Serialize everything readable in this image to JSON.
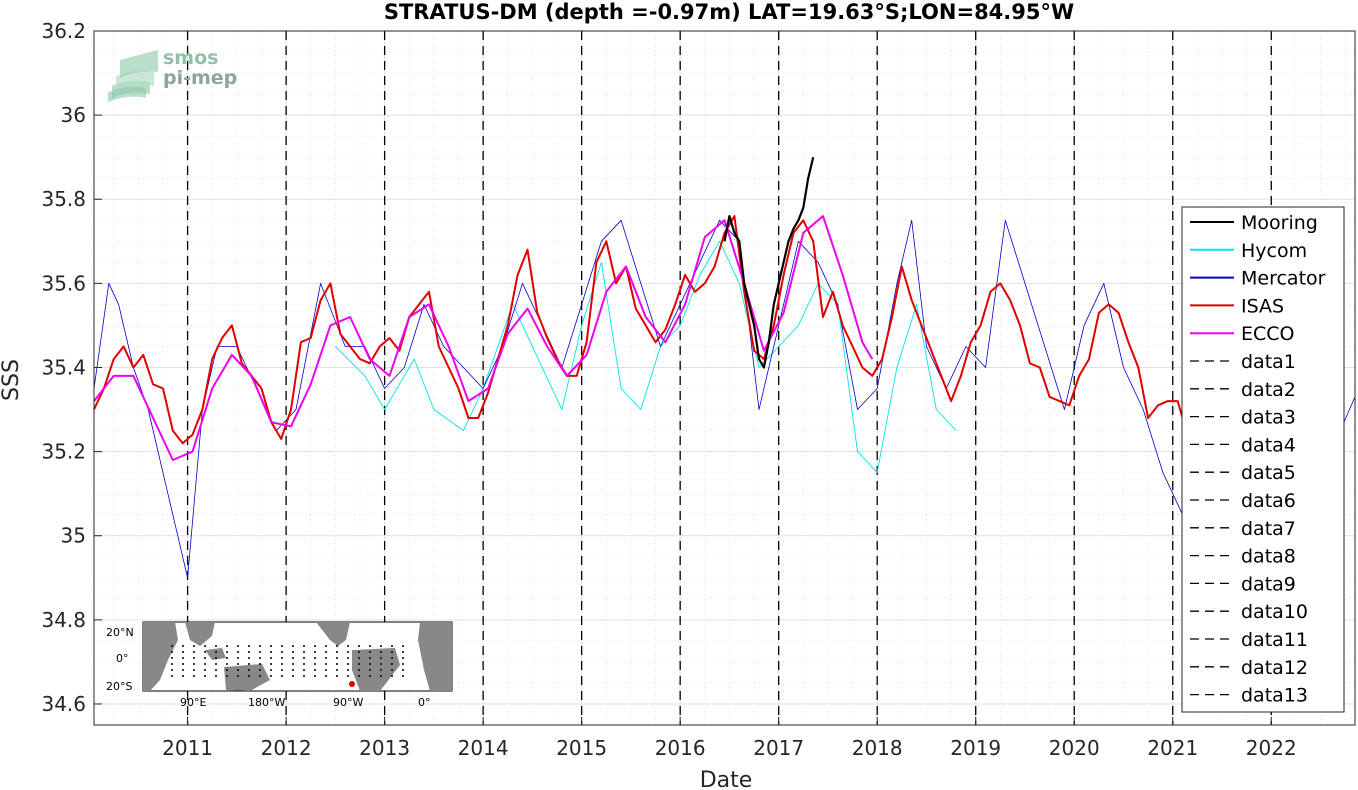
{
  "chart_data": {
    "type": "line",
    "title": "STRATUS-DM (depth =-0.97m) LAT=19.63°S;LON=84.95°W",
    "xlabel": "Date",
    "ylabel": "SSS",
    "xlim": [
      2010.05,
      2022.85
    ],
    "ylim": [
      34.55,
      36.2
    ],
    "yticks": [
      34.6,
      34.8,
      35,
      35.2,
      35.4,
      35.6,
      35.8,
      36,
      36.2
    ],
    "ytick_labels": [
      "34.6",
      "34.8",
      "35",
      "35.2",
      "35.4",
      "35.6",
      "35.8",
      "36",
      "36.2"
    ],
    "xticks": [
      2011,
      2012,
      2013,
      2014,
      2015,
      2016,
      2017,
      2018,
      2019,
      2020,
      2021,
      2022
    ],
    "xtick_labels": [
      "2011",
      "2012",
      "2013",
      "2014",
      "2015",
      "2016",
      "2017",
      "2018",
      "2019",
      "2020",
      "2021",
      "2022"
    ],
    "grid": true,
    "legend_position": "right",
    "vlines": [
      2011,
      2012,
      2013,
      2014,
      2015,
      2016,
      2017,
      2018,
      2019,
      2020,
      2021,
      2022
    ],
    "series": [
      {
        "name": "Mooring",
        "color": "#000000",
        "x": [
          2016.45,
          2016.5,
          2016.55,
          2016.6,
          2016.65,
          2016.7,
          2016.75,
          2016.8,
          2016.85,
          2016.9,
          2016.95,
          2017.0,
          2017.05,
          2017.1,
          2017.15,
          2017.2,
          2017.25,
          2017.3,
          2017.35
        ],
        "y": [
          35.7,
          35.76,
          35.72,
          35.7,
          35.6,
          35.55,
          35.5,
          35.42,
          35.4,
          35.46,
          35.55,
          35.6,
          35.65,
          35.7,
          35.73,
          35.75,
          35.78,
          35.85,
          35.9
        ]
      },
      {
        "name": "Hycom",
        "color": "#00e5e5",
        "x": [
          2012.5,
          2012.8,
          2013.0,
          2013.3,
          2013.5,
          2013.8,
          2014.0,
          2014.3,
          2014.5,
          2014.8,
          2015.0,
          2015.2,
          2015.4,
          2015.6,
          2015.8,
          2016.0,
          2016.2,
          2016.4,
          2016.6,
          2016.8,
          2017.0,
          2017.2,
          2017.4,
          2017.6,
          2017.8,
          2018.0,
          2018.2,
          2018.4,
          2018.6,
          2018.8
        ],
        "y": [
          35.45,
          35.38,
          35.3,
          35.42,
          35.3,
          35.25,
          35.35,
          35.55,
          35.45,
          35.3,
          35.5,
          35.65,
          35.35,
          35.3,
          35.45,
          35.5,
          35.62,
          35.7,
          35.6,
          35.4,
          35.45,
          35.5,
          35.6,
          35.55,
          35.2,
          35.15,
          35.4,
          35.55,
          35.3,
          35.25
        ]
      },
      {
        "name": "Mercator",
        "color": "#0000cc",
        "x": [
          2010.05,
          2010.2,
          2010.3,
          2010.45,
          2010.6,
          2010.8,
          2011.0,
          2011.15,
          2011.3,
          2011.5,
          2011.7,
          2011.9,
          2012.1,
          2012.35,
          2012.6,
          2012.8,
          2013.0,
          2013.2,
          2013.4,
          2013.6,
          2013.8,
          2014.0,
          2014.2,
          2014.4,
          2014.6,
          2014.8,
          2015.0,
          2015.2,
          2015.4,
          2015.6,
          2015.8,
          2016.0,
          2016.2,
          2016.4,
          2016.6,
          2016.8,
          2017.0,
          2017.2,
          2017.4,
          2017.6,
          2017.8,
          2018.0,
          2018.2,
          2018.35,
          2018.5,
          2018.7,
          2018.9,
          2019.1,
          2019.3,
          2019.5,
          2019.7,
          2019.9,
          2020.1,
          2020.3,
          2020.5,
          2020.7,
          2020.9,
          2021.1,
          2021.3,
          2021.5,
          2021.7,
          2021.9,
          2022.1,
          2022.3,
          2022.5,
          2022.7,
          2022.85
        ],
        "y": [
          35.35,
          35.6,
          35.55,
          35.4,
          35.3,
          35.1,
          34.9,
          35.3,
          35.45,
          35.45,
          35.35,
          35.25,
          35.3,
          35.6,
          35.45,
          35.45,
          35.35,
          35.4,
          35.55,
          35.45,
          35.4,
          35.35,
          35.45,
          35.6,
          35.5,
          35.4,
          35.55,
          35.7,
          35.75,
          35.6,
          35.45,
          35.55,
          35.65,
          35.75,
          35.7,
          35.3,
          35.5,
          35.7,
          35.65,
          35.55,
          35.3,
          35.35,
          35.6,
          35.75,
          35.45,
          35.35,
          35.45,
          35.4,
          35.75,
          35.6,
          35.45,
          35.3,
          35.5,
          35.6,
          35.4,
          35.3,
          35.15,
          35.05,
          35.4,
          35.55,
          35.4,
          35.3,
          35.45,
          35.55,
          35.4,
          35.25,
          35.33
        ]
      },
      {
        "name": "ISAS",
        "color": "#e00000",
        "x": [
          2010.05,
          2010.15,
          2010.25,
          2010.35,
          2010.45,
          2010.55,
          2010.65,
          2010.75,
          2010.85,
          2010.95,
          2011.05,
          2011.15,
          2011.25,
          2011.35,
          2011.45,
          2011.55,
          2011.65,
          2011.75,
          2011.85,
          2011.95,
          2012.05,
          2012.15,
          2012.25,
          2012.35,
          2012.45,
          2012.55,
          2012.65,
          2012.75,
          2012.85,
          2012.95,
          2013.05,
          2013.15,
          2013.25,
          2013.35,
          2013.45,
          2013.55,
          2013.65,
          2013.75,
          2013.85,
          2013.95,
          2014.05,
          2014.15,
          2014.25,
          2014.35,
          2014.45,
          2014.55,
          2014.65,
          2014.75,
          2014.85,
          2014.95,
          2015.05,
          2015.15,
          2015.25,
          2015.35,
          2015.45,
          2015.55,
          2015.65,
          2015.75,
          2015.85,
          2015.95,
          2016.05,
          2016.15,
          2016.25,
          2016.35,
          2016.45,
          2016.55,
          2016.65,
          2016.75,
          2016.85,
          2016.95,
          2017.05,
          2017.15,
          2017.25,
          2017.35,
          2017.45,
          2017.55,
          2017.65,
          2017.75,
          2017.85,
          2017.95,
          2018.05,
          2018.15,
          2018.25,
          2018.35,
          2018.45,
          2018.55,
          2018.65,
          2018.75,
          2018.85,
          2018.95,
          2019.05,
          2019.15,
          2019.25,
          2019.35,
          2019.45,
          2019.55,
          2019.65,
          2019.75,
          2019.85,
          2019.95,
          2020.05,
          2020.15,
          2020.25,
          2020.35,
          2020.45,
          2020.55,
          2020.65,
          2020.75,
          2020.85,
          2020.95,
          2021.05,
          2021.1
        ],
        "y": [
          35.3,
          35.35,
          35.42,
          35.45,
          35.4,
          35.43,
          35.36,
          35.35,
          35.25,
          35.22,
          35.24,
          35.3,
          35.42,
          35.47,
          35.5,
          35.41,
          35.38,
          35.35,
          35.27,
          35.23,
          35.3,
          35.46,
          35.47,
          35.56,
          35.6,
          35.48,
          35.45,
          35.42,
          35.41,
          35.45,
          35.47,
          35.44,
          35.52,
          35.55,
          35.58,
          35.45,
          35.4,
          35.35,
          35.28,
          35.28,
          35.34,
          35.42,
          35.5,
          35.62,
          35.68,
          35.53,
          35.47,
          35.42,
          35.38,
          35.38,
          35.46,
          35.65,
          35.7,
          35.6,
          35.64,
          35.54,
          35.5,
          35.46,
          35.49,
          35.55,
          35.62,
          35.58,
          35.6,
          35.64,
          35.72,
          35.76,
          35.58,
          35.44,
          35.42,
          35.5,
          35.62,
          35.72,
          35.75,
          35.7,
          35.52,
          35.58,
          35.5,
          35.45,
          35.4,
          35.38,
          35.42,
          35.52,
          35.64,
          35.56,
          35.5,
          35.44,
          35.38,
          35.32,
          35.38,
          35.46,
          35.5,
          35.58,
          35.6,
          35.56,
          35.5,
          35.41,
          35.4,
          35.33,
          35.32,
          35.31,
          35.38,
          35.42,
          35.53,
          35.55,
          35.53,
          35.46,
          35.4,
          35.28,
          35.31,
          35.32,
          35.32,
          35.28
        ]
      },
      {
        "name": "ECCO",
        "color": "#ee00ee",
        "x": [
          2010.05,
          2010.25,
          2010.45,
          2010.65,
          2010.85,
          2011.05,
          2011.25,
          2011.45,
          2011.65,
          2011.85,
          2012.05,
          2012.25,
          2012.45,
          2012.65,
          2012.85,
          2013.05,
          2013.25,
          2013.45,
          2013.65,
          2013.85,
          2014.05,
          2014.25,
          2014.45,
          2014.65,
          2014.85,
          2015.05,
          2015.25,
          2015.45,
          2015.65,
          2015.85,
          2016.05,
          2016.25,
          2016.45,
          2016.65,
          2016.85,
          2017.05,
          2017.25,
          2017.45,
          2017.65,
          2017.85,
          2017.95
        ],
        "y": [
          35.32,
          35.38,
          35.38,
          35.28,
          35.18,
          35.2,
          35.35,
          35.43,
          35.38,
          35.27,
          35.26,
          35.36,
          35.5,
          35.52,
          35.42,
          35.38,
          35.52,
          35.55,
          35.45,
          35.32,
          35.35,
          35.48,
          35.54,
          35.45,
          35.38,
          35.43,
          35.58,
          35.64,
          35.52,
          35.46,
          35.55,
          35.71,
          35.75,
          35.6,
          35.44,
          35.53,
          35.72,
          35.76,
          35.62,
          35.46,
          35.42
        ]
      },
      {
        "name": "data1",
        "color": "#000000"
      },
      {
        "name": "data2",
        "color": "#000000"
      },
      {
        "name": "data3",
        "color": "#000000"
      },
      {
        "name": "data4",
        "color": "#000000"
      },
      {
        "name": "data5",
        "color": "#000000"
      },
      {
        "name": "data6",
        "color": "#000000"
      },
      {
        "name": "data7",
        "color": "#000000"
      },
      {
        "name": "data8",
        "color": "#000000"
      },
      {
        "name": "data9",
        "color": "#000000"
      },
      {
        "name": "data10",
        "color": "#000000"
      },
      {
        "name": "data11",
        "color": "#000000"
      },
      {
        "name": "data12",
        "color": "#000000"
      },
      {
        "name": "data13",
        "color": "#000000"
      }
    ]
  },
  "logo": {
    "line1": "smos",
    "line2": "pi-mep"
  },
  "inset_map": {
    "lat_labels": [
      "20°N",
      "0°",
      "20°S"
    ],
    "lon_labels": [
      "90°E",
      "180°W",
      "90°W",
      "0°"
    ]
  }
}
